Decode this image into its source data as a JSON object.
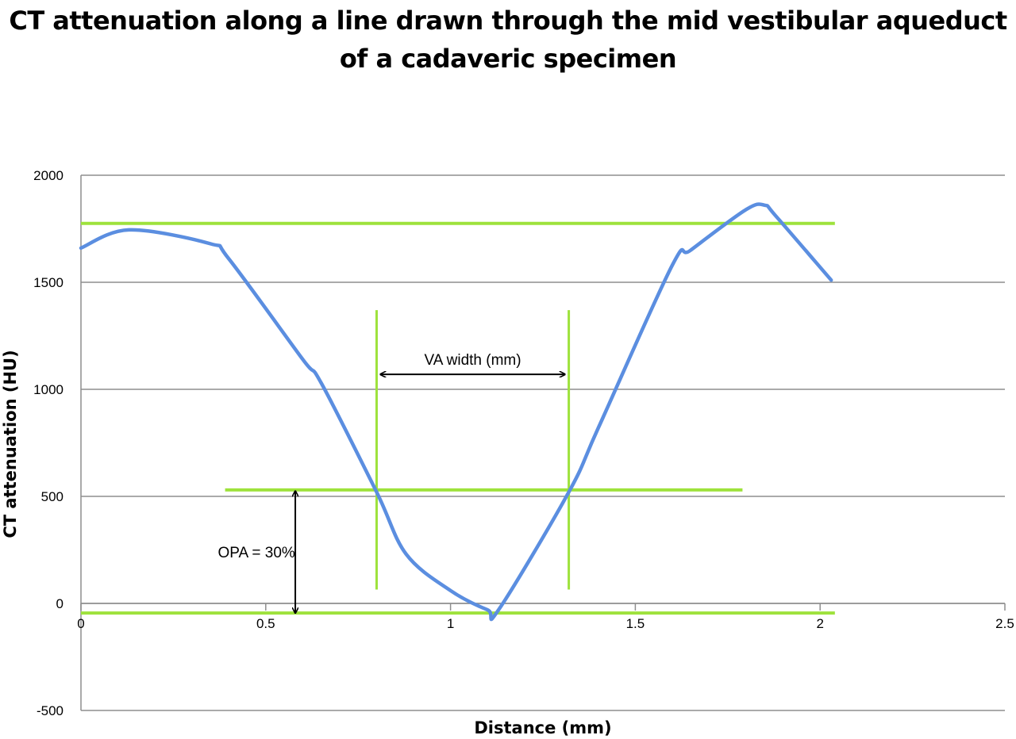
{
  "chart_data": {
    "type": "line",
    "title_line1": "CT attenuation along a line drawn through the mid vestibular aqueduct",
    "title_line2": "of a cadaveric specimen",
    "xlabel": "Distance (mm)",
    "ylabel": "CT attenuation (HU)",
    "xlim": [
      0,
      2.5
    ],
    "ylim": [
      -500,
      2000
    ],
    "x_ticks": [
      0,
      0.5,
      1,
      1.5,
      2,
      2.5
    ],
    "x_tick_labels": [
      "0",
      "0.5",
      "1",
      "1.5",
      "2",
      "2.5"
    ],
    "y_ticks": [
      -500,
      0,
      500,
      1000,
      1500,
      2000
    ],
    "y_tick_labels": [
      "-500",
      "0",
      "500",
      "1000",
      "1500",
      "2000"
    ],
    "grid": "horizontal",
    "series": [
      {
        "color": "#5b8ee0",
        "x": [
          0,
          0.13,
          0.35,
          0.4,
          0.6,
          0.65,
          0.8,
          0.88,
          1.0,
          1.1,
          1.13,
          1.32,
          1.4,
          1.6,
          1.65,
          1.8,
          1.85,
          1.88,
          2.03
        ],
        "y": [
          1660,
          1745,
          1680,
          1610,
          1140,
          1030,
          520,
          230,
          60,
          -30,
          -30,
          520,
          820,
          1580,
          1650,
          1840,
          1860,
          1810,
          1510
        ]
      }
    ],
    "reference_lines": [
      {
        "orientation": "horizontal",
        "y": 1775,
        "x_range": [
          0,
          2.04
        ],
        "color": "#9ee23c"
      },
      {
        "orientation": "horizontal",
        "y": 530,
        "x_range": [
          0.39,
          1.79
        ],
        "color": "#9ee23c"
      },
      {
        "orientation": "horizontal",
        "y": -45,
        "x_range": [
          0,
          2.04
        ],
        "color": "#9ee23c"
      },
      {
        "orientation": "vertical",
        "x": 0.8,
        "y_range": [
          65,
          1370
        ],
        "color": "#9ee23c"
      },
      {
        "orientation": "vertical",
        "x": 1.32,
        "y_range": [
          65,
          1370
        ],
        "color": "#9ee23c"
      }
    ],
    "annotations": [
      {
        "text": "VA width (mm)",
        "arrow": "double-horizontal",
        "x_range": [
          0.81,
          1.31
        ],
        "y": 1070,
        "text_x": 1.06,
        "text_y": 1140
      },
      {
        "text": "OPA = 30%",
        "arrow": "double-vertical",
        "x": 0.58,
        "y_range": [
          -45,
          525
        ],
        "text_x": 0.475,
        "text_y": 240
      }
    ]
  }
}
